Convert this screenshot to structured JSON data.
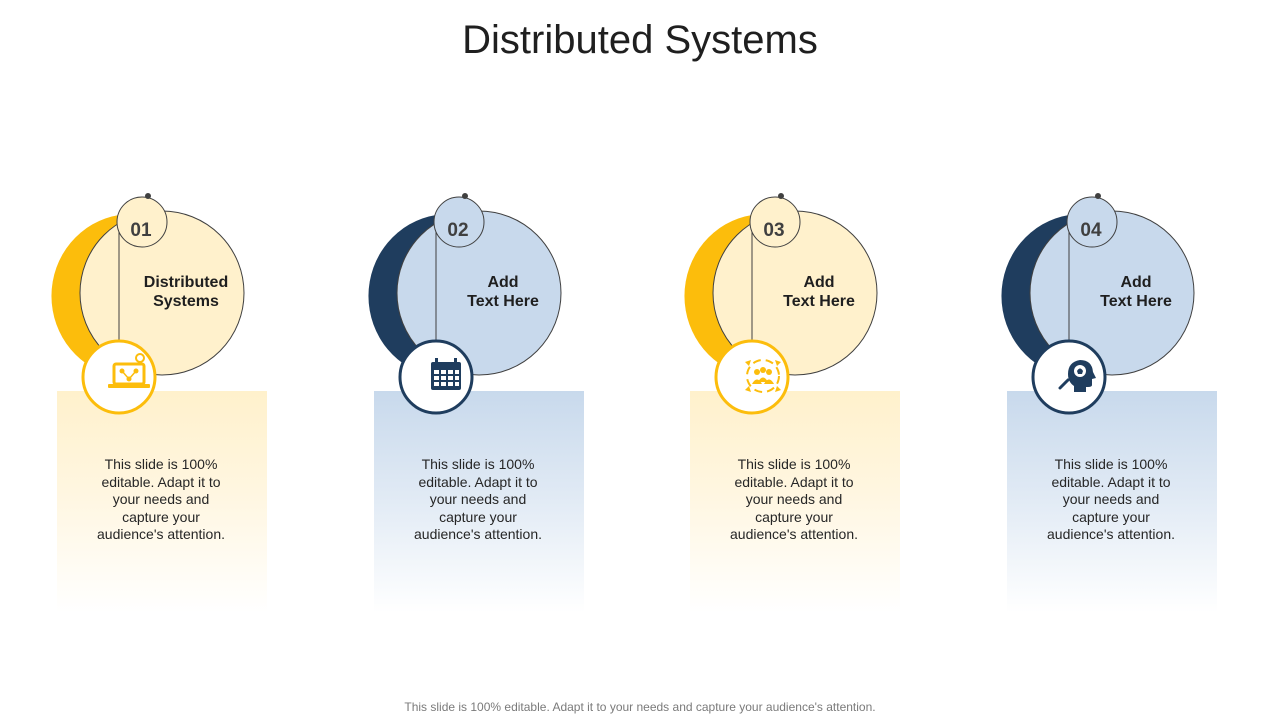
{
  "title": "Distributed Systems",
  "footer": "This slide is 100% editable. Adapt it to your needs and capture your audience's attention.",
  "colors": {
    "yellow": "#fcbd0c",
    "yellow_light": "#fff1cc",
    "navy": "#1f3d5e",
    "blue_light": "#c8d9ec"
  },
  "cards": [
    {
      "number": "01",
      "heading_line1": "Distributed",
      "heading_line2": "Systems",
      "body_lines": [
        "This slide is 100%",
        "editable. Adapt it to",
        "your needs and",
        "capture your",
        "audience's attention."
      ],
      "icon": "laptop-network-icon",
      "theme": "yellow"
    },
    {
      "number": "02",
      "heading_line1": "Add",
      "heading_line2": "Text Here",
      "body_lines": [
        "This slide is 100%",
        "editable. Adapt it to",
        "your needs and",
        "capture your",
        "audience's attention."
      ],
      "icon": "calendar-icon",
      "theme": "blue"
    },
    {
      "number": "03",
      "heading_line1": "Add",
      "heading_line2": "Text Here",
      "body_lines": [
        "This slide is 100%",
        "editable. Adapt it to",
        "your needs and",
        "capture your",
        "audience's attention."
      ],
      "icon": "team-cycle-icon",
      "theme": "yellow"
    },
    {
      "number": "04",
      "heading_line1": "Add",
      "heading_line2": "Text Here",
      "body_lines": [
        "This slide is 100%",
        "editable. Adapt it to",
        "your needs and",
        "capture your",
        "audience's attention."
      ],
      "icon": "head-idea-search-icon",
      "theme": "blue"
    }
  ]
}
